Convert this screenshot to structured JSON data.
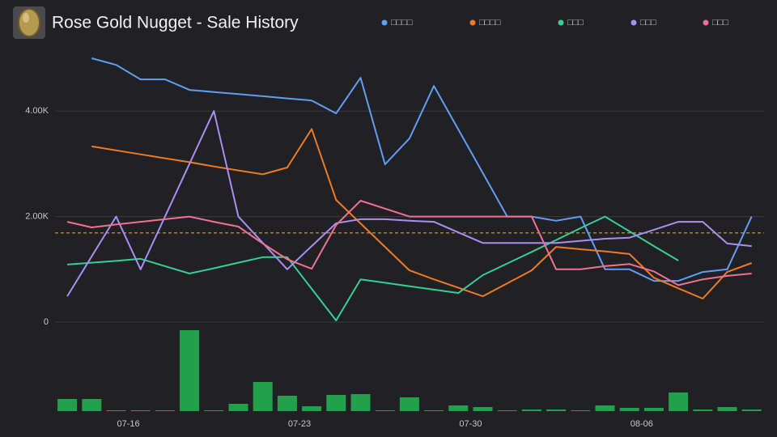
{
  "chart_data": {
    "type": "line",
    "title": "Rose Gold Nugget - Sale History",
    "categories": [
      null,
      null,
      null,
      "07-16",
      null,
      null,
      null,
      null,
      null,
      null,
      "07-23",
      null,
      null,
      null,
      null,
      null,
      null,
      "07-30",
      null,
      null,
      null,
      null,
      null,
      null,
      "08-06",
      null,
      null,
      null,
      null
    ],
    "ylim": [
      0,
      5000
    ],
    "yticks": [
      0,
      {
        "value": 2000,
        "label": "2.00K"
      },
      {
        "value": 4000,
        "label": "4.00K"
      }
    ],
    "grid": true,
    "legend": "top",
    "reference_line": {
      "value": 1690,
      "color": "#d4a72c"
    },
    "series": [
      {
        "name": "□□□□",
        "color": "#5f9ff2",
        "values": [
          null,
          5000,
          4875,
          4600,
          4600,
          4400,
          4360,
          4320,
          4280,
          4240,
          4200,
          3955,
          4630,
          2990,
          3480,
          4475,
          3650,
          2825,
          2000,
          2000,
          1920,
          2000,
          1000,
          1000,
          780,
          780,
          950,
          1000,
          2000
        ]
      },
      {
        "name": "□□□□",
        "color": "#f07a22",
        "values": [
          null,
          3330,
          3255,
          3180,
          3105,
          3030,
          2950,
          2875,
          2800,
          2930,
          3660,
          2315,
          1870,
          1425,
          980,
          810,
          650,
          490,
          735,
          980,
          1425,
          1380,
          1340,
          1290,
          840,
          640,
          445,
          950,
          1120
        ]
      },
      {
        "name": "□□□",
        "color": "#36cf94",
        "values": [
          1090,
          1125,
          1160,
          1200,
          1060,
          920,
          1020,
          1125,
          1230,
          1230,
          630,
          30,
          810,
          745,
          680,
          615,
          550,
          890,
          1110,
          1330,
          1555,
          1780,
          2000,
          1720,
          1440,
          1165,
          null,
          null,
          null
        ]
      },
      {
        "name": "□□□",
        "color": "#a98ef5",
        "values": [
          490,
          1245,
          2000,
          1000,
          2000,
          3000,
          4000,
          2000,
          1500,
          1000,
          1440,
          1875,
          1950,
          1950,
          1920,
          1900,
          1700,
          1500,
          1500,
          1500,
          1500,
          1540,
          1580,
          1600,
          1750,
          1900,
          1900,
          1490,
          1440
        ]
      },
      {
        "name": "□□□",
        "color": "#f2718e",
        "values": [
          1900,
          1795,
          1850,
          1900,
          1950,
          2000,
          1900,
          1810,
          1490,
          1190,
          1010,
          1840,
          2300,
          2150,
          2000,
          2000,
          2000,
          2000,
          2000,
          2000,
          1000,
          1000,
          1060,
          1100,
          960,
          700,
          810,
          875,
          920
        ]
      }
    ],
    "volume": {
      "color": "#22a04b",
      "values": [
        15,
        15,
        1,
        1,
        1,
        100,
        1,
        9,
        36,
        19,
        6,
        20,
        21,
        1,
        17,
        1,
        7,
        5,
        1,
        2,
        2,
        1,
        7,
        4,
        4,
        23,
        2,
        5,
        2
      ]
    }
  }
}
